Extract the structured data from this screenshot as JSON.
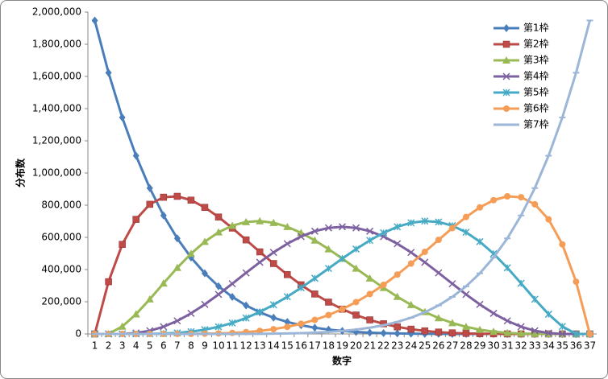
{
  "chart_data": {
    "type": "line",
    "xlabel": "数字",
    "ylabel": "分布数",
    "categories": [
      "1",
      "2",
      "3",
      "4",
      "5",
      "6",
      "7",
      "8",
      "9",
      "10",
      "11",
      "12",
      "13",
      "14",
      "15",
      "16",
      "17",
      "18",
      "19",
      "20",
      "21",
      "22",
      "23",
      "24",
      "25",
      "26",
      "27",
      "28",
      "29",
      "30",
      "31",
      "32",
      "33",
      "34",
      "35",
      "36",
      "37"
    ],
    "series": [
      {
        "name": "第1枠",
        "color": "#4a7ebb",
        "marker": "diamond",
        "values": [
          1947792,
          1623160,
          1344904,
          1107568,
          906192,
          736281,
          593775,
          475020,
          376740,
          296010,
          230230,
          177100,
          134596,
          100947,
          74613,
          54264,
          38760,
          27132,
          18564,
          12376,
          8008,
          5005,
          3003,
          1716,
          924,
          462,
          210,
          84,
          28,
          7,
          1,
          0,
          0,
          0,
          0,
          0,
          0
        ]
      },
      {
        "name": "第2枠",
        "color": "#be4b48",
        "marker": "square",
        "values": [
          0,
          324632,
          556512,
          712008,
          805504,
          849555,
          855036,
          831285,
          786240,
          726570,
          657800,
          584430,
          510048,
          437437,
          368676,
          305235,
          248064,
          197676,
          154224,
          117572,
          87360,
          63063,
          44044,
          29601,
          19008,
          11550,
          6552,
          3402,
          1568,
          609,
          180,
          31,
          0,
          0,
          0,
          0,
          0
        ]
      },
      {
        "name": "第3枠",
        "color": "#98b954",
        "marker": "triangle",
        "values": [
          0,
          0,
          46376,
          122760,
          215760,
          314650,
          411075,
          498771,
          573300,
          631800,
          672750,
          695750,
          701316,
          690690,
          665665,
          628425,
          581400,
          527136,
          468180,
          406980,
          345800,
          286650,
          231231,
          180895,
          136620,
          99000,
          68250,
          44226,
          26460,
          14210,
          6525,
          2325,
          496,
          0,
          0,
          0,
          0
        ]
      },
      {
        "name": "第4枠",
        "color": "#7d60a0",
        "marker": "x",
        "values": [
          0,
          0,
          0,
          5456,
          19840,
          44950,
          81200,
          127890,
          183456,
          245700,
          312000,
          379500,
          445280,
          506506,
          560560,
          605150,
          638400,
          658920,
          665856,
          658920,
          638400,
          605150,
          560560,
          506506,
          445280,
          379500,
          312000,
          245700,
          183456,
          127890,
          81200,
          44950,
          19840,
          5456,
          0,
          0,
          0
        ]
      },
      {
        "name": "第5枠",
        "color": "#46aac5",
        "marker": "star",
        "values": [
          0,
          0,
          0,
          0,
          496,
          2325,
          6525,
          14210,
          26460,
          44226,
          68250,
          99000,
          136620,
          180895,
          231231,
          286650,
          345800,
          406980,
          468180,
          527136,
          581400,
          628425,
          665665,
          690690,
          701316,
          695750,
          672750,
          631800,
          573300,
          498771,
          411075,
          314650,
          215760,
          122760,
          46376,
          0,
          0
        ]
      },
      {
        "name": "第6枠",
        "color": "#f59d56",
        "marker": "circle",
        "values": [
          0,
          0,
          0,
          0,
          0,
          31,
          180,
          609,
          1568,
          3402,
          6552,
          11550,
          19008,
          29601,
          44044,
          63063,
          87360,
          117572,
          154224,
          197676,
          248064,
          305235,
          368676,
          437437,
          510048,
          584430,
          657800,
          726570,
          786240,
          831285,
          855036,
          849555,
          805504,
          712008,
          556512,
          324632,
          0
        ]
      },
      {
        "name": "第7枠",
        "color": "#9cb6d8",
        "marker": "dash",
        "values": [
          0,
          0,
          0,
          0,
          0,
          0,
          1,
          7,
          28,
          84,
          210,
          462,
          924,
          1716,
          3003,
          5005,
          8008,
          12376,
          18564,
          27132,
          38760,
          54264,
          74613,
          100947,
          134596,
          177100,
          230230,
          296010,
          376740,
          475020,
          593775,
          736281,
          906192,
          1107568,
          1344904,
          1623160,
          1947792
        ]
      }
    ],
    "ylim": [
      0,
      2000000
    ],
    "yticks": [
      0,
      {
        "value": 200000,
        "label": "200,000"
      },
      {
        "value": 400000,
        "label": "400,000"
      },
      {
        "value": 600000,
        "label": "600,000"
      },
      {
        "value": 800000,
        "label": "800,000"
      },
      {
        "value": 1000000,
        "label": "1,000,000"
      },
      {
        "value": 1200000,
        "label": "1,200,000"
      },
      {
        "value": 1400000,
        "label": "1,400,000"
      },
      {
        "value": 1600000,
        "label": "1,600,000"
      },
      {
        "value": 1800000,
        "label": "1,800,000"
      },
      {
        "value": 2000000,
        "label": "2,000,000"
      }
    ],
    "grid": false,
    "legend": "top-right"
  }
}
